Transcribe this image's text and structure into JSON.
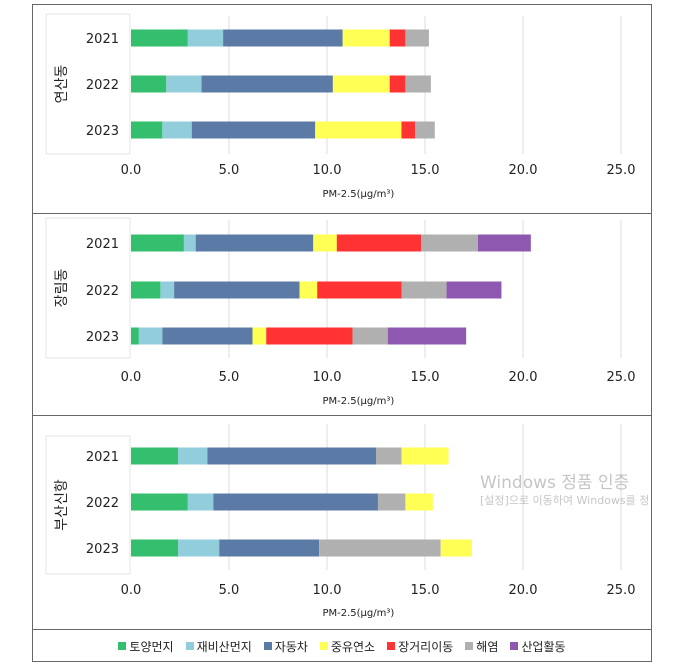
{
  "chart_data": {
    "type": "bar",
    "orientation": "horizontal-stacked",
    "xlabel": "PM-2.5(μg/m³)",
    "xlim": [
      0,
      25
    ],
    "xticks": [
      "0.0",
      "5.0",
      "10.0",
      "15.0",
      "20.0",
      "25.0"
    ],
    "grid": true,
    "legend_position": "bottom",
    "legend": [
      {
        "name": "토양먼지",
        "color": "#33BF6E"
      },
      {
        "name": "재비산먼지",
        "color": "#92CDDC"
      },
      {
        "name": "자동차",
        "color": "#5B7BA6"
      },
      {
        "name": "중유연소",
        "color": "#FFFF55"
      },
      {
        "name": "장거리이동",
        "color": "#FF3333"
      },
      {
        "name": "해염",
        "color": "#B0B0B0"
      },
      {
        "name": "산업활동",
        "color": "#8E58B0"
      }
    ],
    "panels": [
      {
        "group": "연산동",
        "categories": [
          "2021",
          "2022",
          "2023"
        ],
        "series": [
          {
            "name": "토양먼지",
            "values": [
              2.9,
              1.8,
              1.6
            ]
          },
          {
            "name": "재비산먼지",
            "values": [
              1.8,
              1.8,
              1.5
            ]
          },
          {
            "name": "자동차",
            "values": [
              6.1,
              6.7,
              6.3
            ]
          },
          {
            "name": "중유연소",
            "values": [
              2.4,
              2.9,
              4.4
            ]
          },
          {
            "name": "장거리이동",
            "values": [
              0.8,
              0.8,
              0.7
            ]
          },
          {
            "name": "해염",
            "values": [
              1.2,
              1.3,
              1.0
            ]
          },
          {
            "name": "산업활동",
            "values": [
              0,
              0,
              0
            ]
          }
        ]
      },
      {
        "group": "장림동",
        "categories": [
          "2021",
          "2022",
          "2023"
        ],
        "series": [
          {
            "name": "토양먼지",
            "values": [
              2.7,
              1.5,
              0.4
            ]
          },
          {
            "name": "재비산먼지",
            "values": [
              0.6,
              0.7,
              1.2
            ]
          },
          {
            "name": "자동차",
            "values": [
              6.0,
              6.4,
              4.6
            ]
          },
          {
            "name": "중유연소",
            "values": [
              1.2,
              0.9,
              0.7
            ]
          },
          {
            "name": "장거리이동",
            "values": [
              4.3,
              4.3,
              4.4
            ]
          },
          {
            "name": "해염",
            "values": [
              2.9,
              2.3,
              1.8
            ]
          },
          {
            "name": "산업활동",
            "values": [
              2.7,
              2.8,
              4.0
            ]
          }
        ]
      },
      {
        "group": "부산신항",
        "categories": [
          "2021",
          "2022",
          "2023"
        ],
        "series": [
          {
            "name": "토양먼지",
            "values": [
              2.4,
              2.9,
              2.4
            ]
          },
          {
            "name": "재비산먼지",
            "values": [
              1.5,
              1.3,
              2.1
            ]
          },
          {
            "name": "자동차",
            "values": [
              8.6,
              8.4,
              5.1
            ]
          },
          {
            "name": "해염",
            "values": [
              1.3,
              1.4,
              6.2
            ]
          },
          {
            "name": "중유연소",
            "values": [
              2.4,
              1.4,
              1.6
            ]
          }
        ]
      }
    ]
  },
  "watermark": {
    "line1": "Windows 정품 인증",
    "line2": "[설정]으로 이동하여 Windows를 정"
  }
}
